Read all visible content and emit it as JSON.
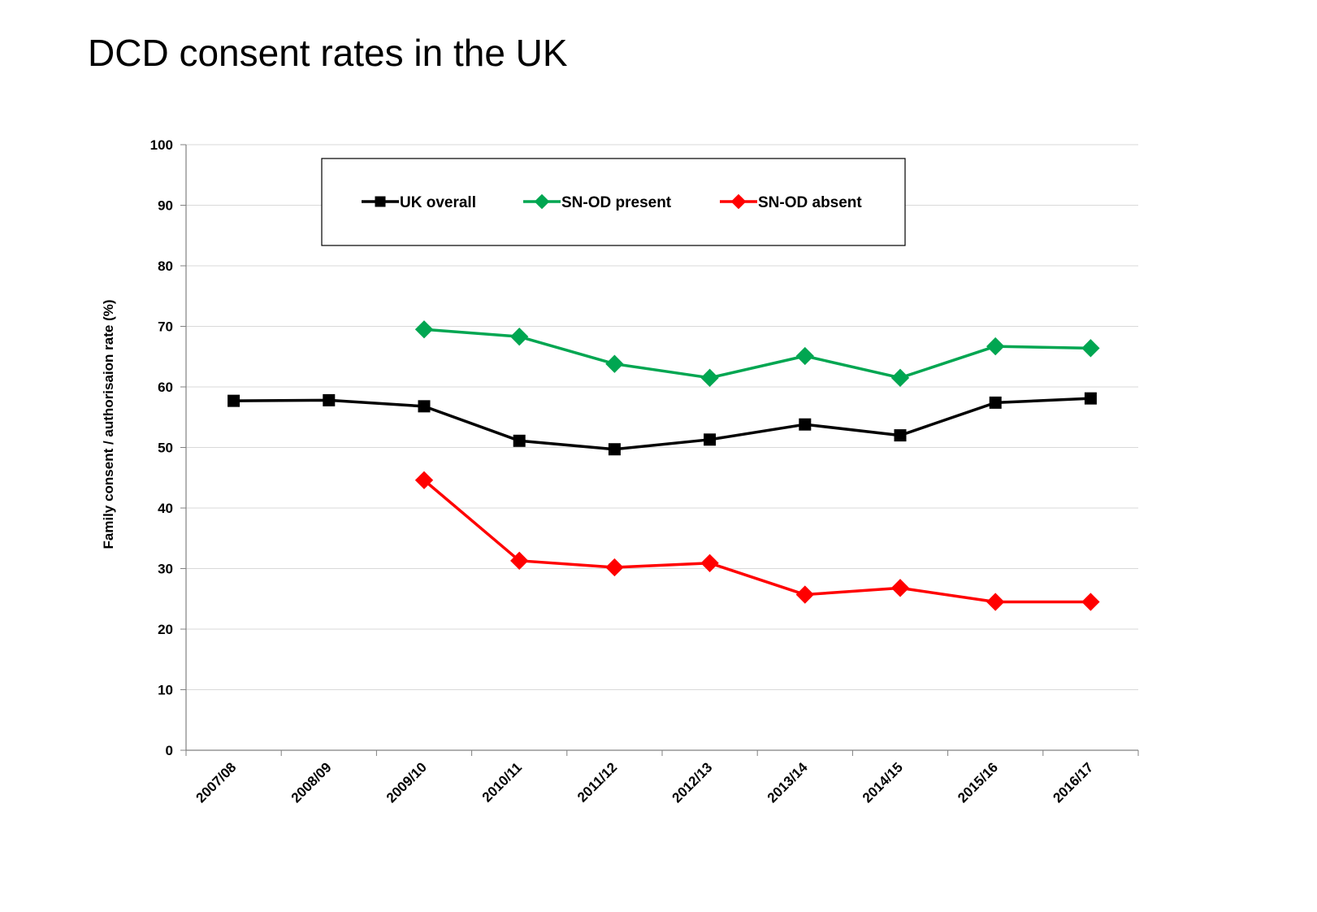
{
  "chart_data": {
    "type": "line",
    "title": "DCD consent rates in the UK",
    "xlabel": "",
    "ylabel": "Family consent / authorisaion rate (%)",
    "ylim": [
      0,
      100
    ],
    "yticks": [
      0,
      10,
      20,
      30,
      40,
      50,
      60,
      70,
      80,
      90,
      100
    ],
    "grid": true,
    "legend_position": "top",
    "categories": [
      "2007/08",
      "2008/09",
      "2009/10",
      "2010/11",
      "2011/12",
      "2012/13",
      "2013/14",
      "2014/15",
      "2015/16",
      "2016/17"
    ],
    "series": [
      {
        "name": "UK overall",
        "color": "#000000",
        "marker": "square",
        "values": [
          57.7,
          57.8,
          56.8,
          51.1,
          49.7,
          51.3,
          53.8,
          52.0,
          57.4,
          58.1
        ]
      },
      {
        "name": "SN-OD present",
        "color": "#00a651",
        "marker": "diamond",
        "values": [
          null,
          null,
          69.5,
          68.3,
          63.8,
          61.5,
          65.1,
          61.5,
          66.7,
          66.4
        ]
      },
      {
        "name": "SN-OD absent",
        "color": "#ff0000",
        "marker": "diamond",
        "values": [
          null,
          null,
          44.6,
          31.3,
          30.2,
          30.9,
          25.7,
          26.8,
          24.5,
          24.5
        ]
      }
    ]
  }
}
